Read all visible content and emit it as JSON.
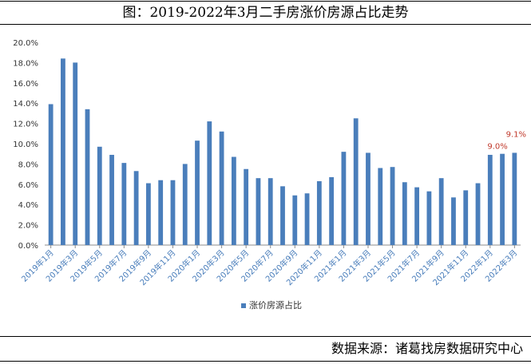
{
  "title": "图：2019-2022年3月二手房涨价房源占比走势",
  "source": "数据来源：诸葛找房数据研究中心",
  "chart_data": {
    "type": "bar",
    "title": "",
    "xlabel": "",
    "ylabel": "",
    "ylim": [
      0,
      0.2
    ],
    "yticks": [
      "0.0%",
      "2.0%",
      "4.0%",
      "6.0%",
      "8.0%",
      "10.0%",
      "12.0%",
      "14.0%",
      "16.0%",
      "18.0%",
      "20.0%"
    ],
    "grid": false,
    "legend_position": "bottom",
    "bar_color": "#4a7ebb",
    "categories": [
      "2019年1月",
      "2019年2月",
      "2019年3月",
      "2019年4月",
      "2019年5月",
      "2019年6月",
      "2019年7月",
      "2019年8月",
      "2019年9月",
      "2019年10月",
      "2019年11月",
      "2019年12月",
      "2020年1月",
      "2020年2月",
      "2020年3月",
      "2020年4月",
      "2020年5月",
      "2020年6月",
      "2020年7月",
      "2020年8月",
      "2020年9月",
      "2020年10月",
      "2020年11月",
      "2020年12月",
      "2021年1月",
      "2021年2月",
      "2021年3月",
      "2021年4月",
      "2021年5月",
      "2021年6月",
      "2021年7月",
      "2021年8月",
      "2021年9月",
      "2021年10月",
      "2021年11月",
      "2021年12月",
      "2022年1月",
      "2022年2月",
      "2022年3月"
    ],
    "xtick_labels": [
      "2019年1月",
      "2019年3月",
      "2019年5月",
      "2019年7月",
      "2019年9月",
      "2019年11月",
      "2020年1月",
      "2020年3月",
      "2020年5月",
      "2020年7月",
      "2020年9月",
      "2020年11月",
      "2021年1月",
      "2021年3月",
      "2021年5月",
      "2021年7月",
      "2021年9月",
      "2021年11月",
      "2022年1月",
      "2022年3月"
    ],
    "series": [
      {
        "name": "涨价房源占比",
        "values": [
          0.139,
          0.184,
          0.18,
          0.134,
          0.097,
          0.089,
          0.081,
          0.073,
          0.061,
          0.064,
          0.064,
          0.08,
          0.103,
          0.122,
          0.112,
          0.087,
          0.075,
          0.066,
          0.066,
          0.058,
          0.049,
          0.051,
          0.063,
          0.067,
          0.092,
          0.125,
          0.091,
          0.076,
          0.077,
          0.062,
          0.057,
          0.053,
          0.066,
          0.047,
          0.054,
          0.061,
          0.089,
          0.09,
          0.091
        ]
      }
    ],
    "data_labels": [
      {
        "category": "2022年2月",
        "text": "9.0%"
      },
      {
        "category": "2022年3月",
        "text": "9.1%"
      }
    ],
    "label_color": "#c0392b"
  }
}
